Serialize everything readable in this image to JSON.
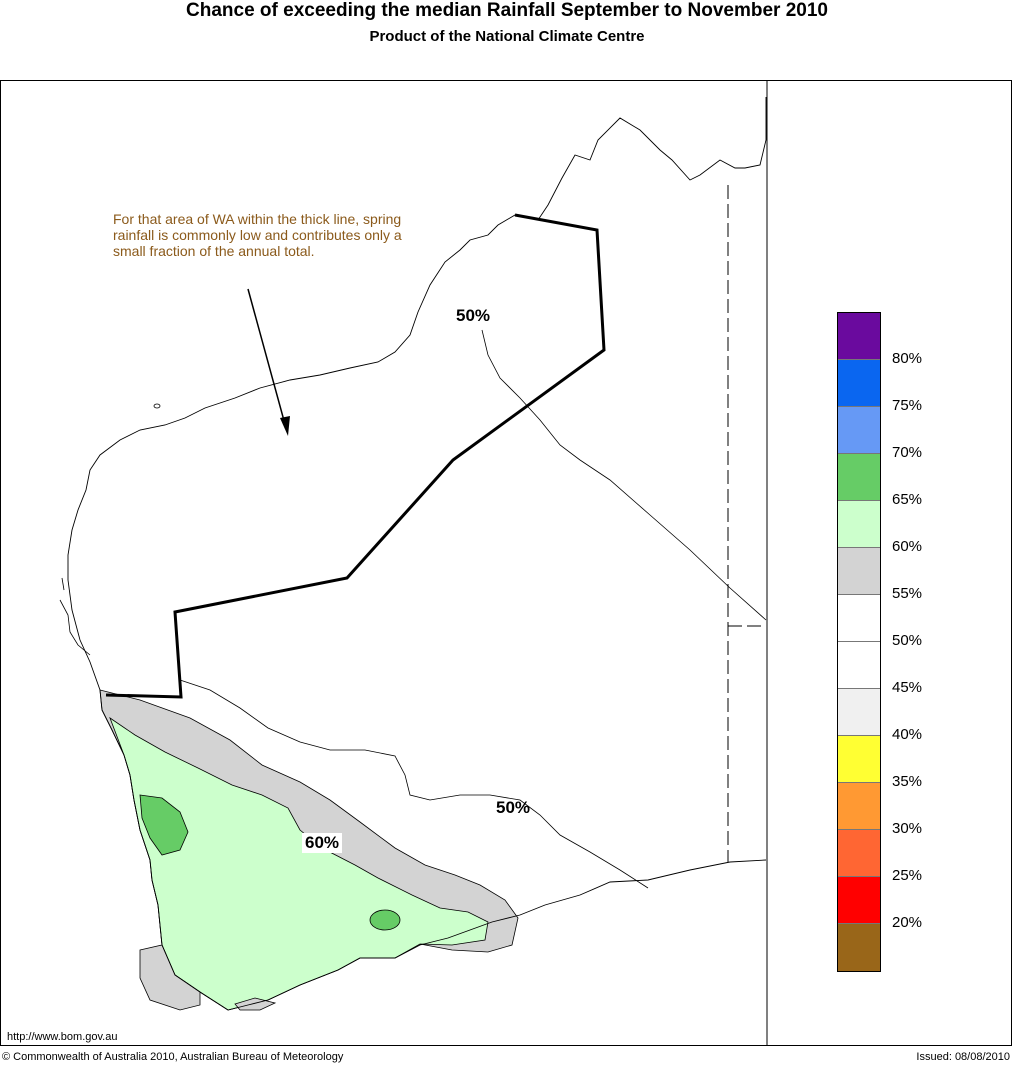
{
  "title": "Chance of exceeding the median Rainfall September to November 2010",
  "subtitle": "Product of the National Climate Centre",
  "annotation": "For that area of WA within the thick line, spring rainfall is commonly low and contributes only a small fraction of the annual total.",
  "contour_labels": {
    "north": "50%",
    "south": "50%",
    "sixty": "60%"
  },
  "legend": {
    "swatches": [
      {
        "color": "#6a0a9e",
        "range": "80–100%"
      },
      {
        "color": "#0a66f0",
        "range": "75–80%"
      },
      {
        "color": "#6699f5",
        "range": "70–75%"
      },
      {
        "color": "#66cc66",
        "range": "65–70%"
      },
      {
        "color": "#ccffcc",
        "range": "60–65%"
      },
      {
        "color": "#d3d3d3",
        "range": "55–60%"
      },
      {
        "color": "#ffffff",
        "range": "50–55%"
      },
      {
        "color": "#ffffff",
        "range": "45–50%"
      },
      {
        "color": "#f0f0f0",
        "range": "40–45%"
      },
      {
        "color": "#ffff33",
        "range": "35–40%"
      },
      {
        "color": "#ff9933",
        "range": "30–35%"
      },
      {
        "color": "#ff6633",
        "range": "25–30%"
      },
      {
        "color": "#ff0000",
        "range": "20–25%"
      },
      {
        "color": "#996619",
        "range": "0–20%"
      }
    ],
    "ticks": [
      "80%",
      "75%",
      "70%",
      "65%",
      "60%",
      "55%",
      "50%",
      "45%",
      "40%",
      "35%",
      "30%",
      "25%",
      "20%"
    ]
  },
  "footer": {
    "url": "http://www.bom.gov.au",
    "copyright": "© Commonwealth of Australia 2010, Australian Bureau of Meteorology",
    "issued": "Issued: 08/08/2010"
  }
}
